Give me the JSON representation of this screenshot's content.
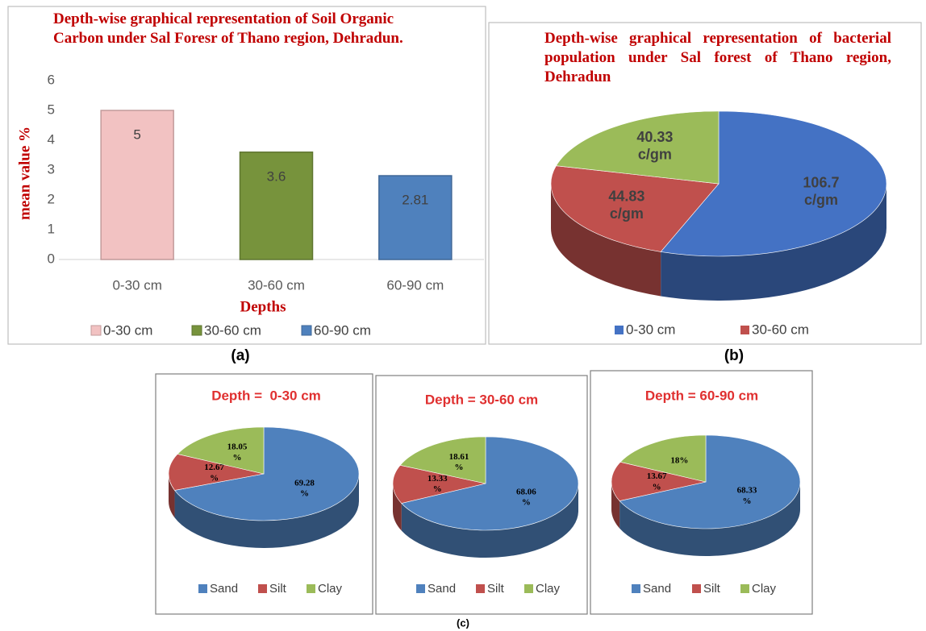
{
  "panel_labels": [
    "(a)",
    "(b)",
    "(c)"
  ],
  "chart_data": [
    {
      "type": "bar",
      "title": "Depth-wise graphical representation of  Soil Organic Carbon under Sal Foresr of Thano region, Dehradun.",
      "categories": [
        "0-30 cm",
        "30-60 cm",
        "60-90 cm"
      ],
      "values": [
        5,
        3.6,
        2.81
      ],
      "colors": [
        "#f2c2c2",
        "#77933c",
        "#4f81bd"
      ],
      "ylim": [
        0,
        6
      ],
      "yticks": [
        0,
        1,
        2,
        3,
        4,
        5,
        6
      ],
      "xlabel": "Depths",
      "ylabel": "mean value %",
      "legend": "bottom"
    },
    {
      "type": "pie",
      "title": "Depth-wise graphical representation of bacterial population under Sal forest of Thano region, Dehradun",
      "categories": [
        "0-30 cm",
        "30-60 cm",
        null
      ],
      "values": [
        106.7,
        44.83,
        40.33
      ],
      "value_labels": [
        "106.7 c/gm",
        "44.83 c/gm",
        "40.33 c/gm"
      ],
      "colors": [
        "#4472c4",
        "#c0504d",
        "#9bbb59"
      ],
      "legend": "bottom"
    },
    {
      "type": "pie",
      "title": "Depth =  0-30 cm",
      "categories": [
        "Sand",
        "Silt",
        "Clay"
      ],
      "values": [
        69.28,
        12.67,
        18.05
      ],
      "value_labels": [
        "69.28 %",
        "12.67 %",
        "18.05 %"
      ],
      "colors": [
        "#4f81bd",
        "#c0504d",
        "#9bbb59"
      ],
      "legend": "bottom"
    },
    {
      "type": "pie",
      "title": "Depth = 30-60 cm",
      "categories": [
        "Sand",
        "Silt",
        "Clay"
      ],
      "values": [
        68.06,
        13.33,
        18.61
      ],
      "value_labels": [
        "68.06 %",
        "13.33 %",
        "18.61 %"
      ],
      "colors": [
        "#4f81bd",
        "#c0504d",
        "#9bbb59"
      ],
      "legend": "bottom"
    },
    {
      "type": "pie",
      "title": "Depth = 60-90 cm",
      "categories": [
        "Sand",
        "Silt",
        "Clay"
      ],
      "values": [
        68.33,
        13.67,
        18
      ],
      "value_labels": [
        "68.33 %",
        "13.67 %",
        "18%"
      ],
      "colors": [
        "#4f81bd",
        "#c0504d",
        "#9bbb59"
      ],
      "legend": "bottom"
    }
  ]
}
